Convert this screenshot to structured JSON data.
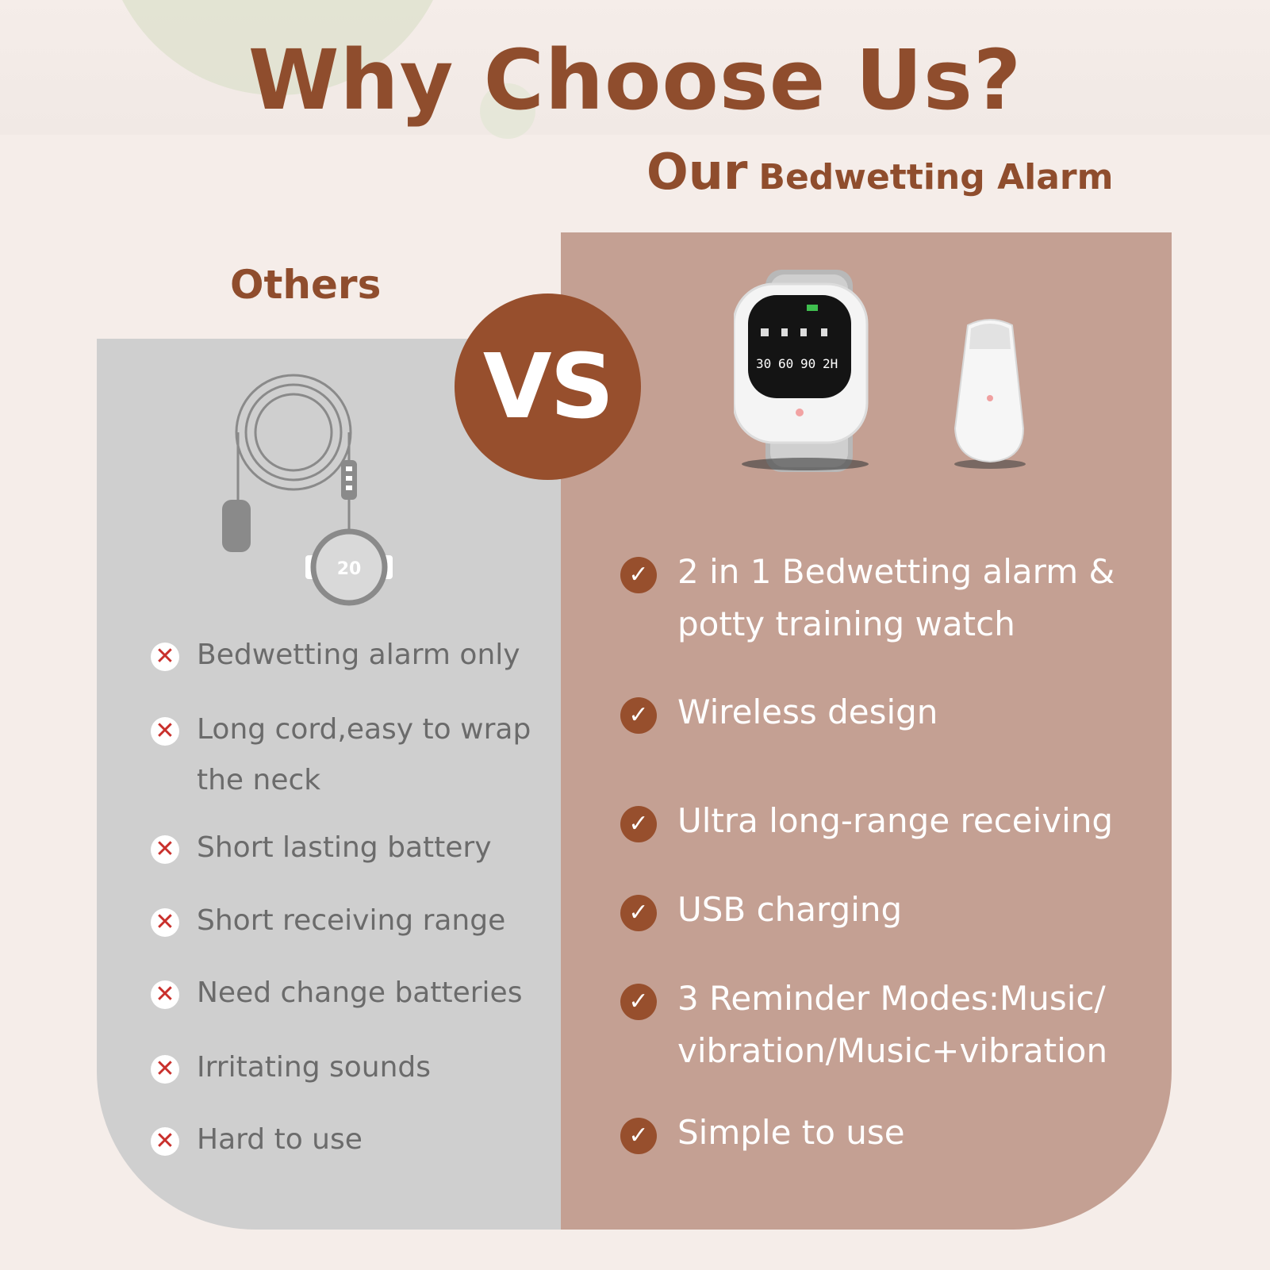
{
  "header": {
    "title": "Why Choose Us?",
    "subtitle_lead": "Our",
    "subtitle_rest": "Bedwetting Alarm"
  },
  "others": {
    "label": "Others",
    "device_display": "20",
    "items": [
      "Bedwetting alarm only",
      "Long cord,easy to wrap",
      "the neck",
      "Short lasting battery",
      "Short receiving range",
      "Need change batteries",
      "Irritating sounds",
      "Hard to use"
    ]
  },
  "vs": {
    "label": "VS"
  },
  "ours": {
    "watch_display": [
      "30",
      "60",
      "90",
      "2H"
    ],
    "items": [
      "2 in 1 Bedwetting alarm &",
      "potty training watch",
      "Wireless design",
      "Ultra long-range receiving",
      "USB charging",
      "3 Reminder Modes:Music/",
      "vibration/Music+vibration",
      "Simple to use"
    ]
  },
  "colors": {
    "brand_brown": "#8f4d2d",
    "vs_badge": "#974f2d",
    "left_panel": "#cfcfcf",
    "right_panel": "#c4a093",
    "cross_red": "#c9302c"
  }
}
